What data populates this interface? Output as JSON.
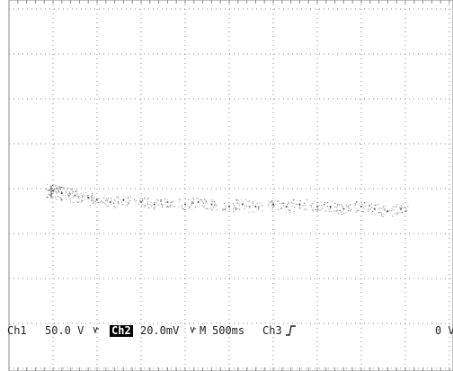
{
  "chart_data": {
    "type": "scatter",
    "title": "",
    "xlabel": "",
    "ylabel": "",
    "grid": true,
    "grid_divisions": {
      "x": 10,
      "y": 8
    },
    "ylim": [
      -4,
      4
    ],
    "xlim": [
      -5,
      5
    ],
    "series": [
      {
        "x": [
          -4.0,
          -3.8,
          -3.5,
          -3.2,
          -3.0,
          -2.7,
          -2.4,
          -2.0,
          -1.7,
          -1.4,
          -1.0,
          -0.7,
          -0.4,
          0.0,
          0.3,
          0.6,
          1.0,
          1.3,
          1.6,
          2.0,
          2.3,
          2.6,
          3.0,
          3.3,
          3.6,
          3.9
        ],
        "values": [
          0.05,
          0.0,
          -0.05,
          -0.1,
          -0.15,
          -0.2,
          -0.15,
          -0.2,
          -0.25,
          -0.2,
          -0.25,
          -0.2,
          -0.25,
          -0.3,
          -0.25,
          -0.3,
          -0.25,
          -0.3,
          -0.25,
          -0.3,
          -0.3,
          -0.35,
          -0.3,
          -0.35,
          -0.4,
          -0.35
        ]
      }
    ]
  },
  "status_bar": {
    "ch1_label": "Ch1",
    "ch1_scale": "50.0 V",
    "ch1_bw_icon": "bandwidth-limit-icon",
    "ch2_label": "Ch2",
    "ch2_scale": "20.0mV",
    "ch2_bw_icon": "bandwidth-limit-icon",
    "timebase_label": "M",
    "timebase_value": "500ms",
    "trigger_source": "Ch3",
    "trigger_slope_icon": "rising-edge-icon",
    "trigger_level": "0 V"
  },
  "colors": {
    "background": "#ffffff",
    "grid": "#8a8a8a",
    "trace": "#4a4a4a",
    "text": "#222222",
    "inverse_bg": "#000000"
  }
}
